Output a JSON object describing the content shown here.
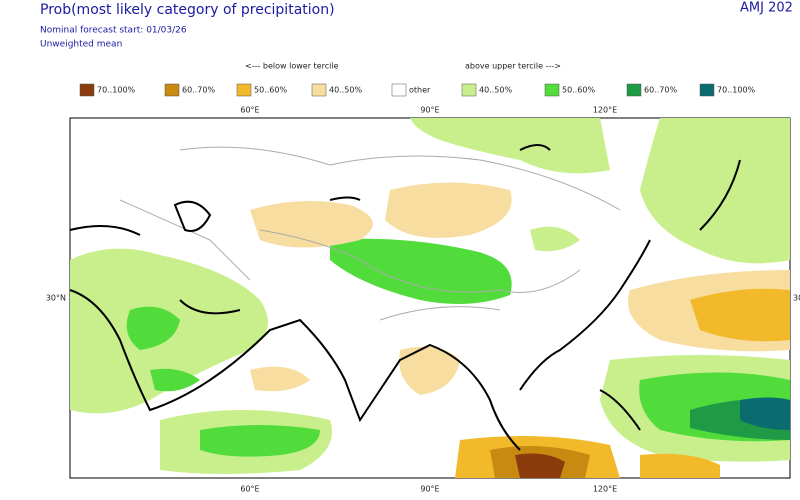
{
  "header": {
    "title": "Prob(most likely category of precipitation)",
    "subtitle": "Nominal forecast start: 01/03/26",
    "note": "Unweighted mean",
    "period": "AMJ 202"
  },
  "legend": {
    "below_label": "<--- below lower tercile",
    "above_label": "above upper tercile --->",
    "items": [
      {
        "label": "70..100%",
        "color": "#8c3b0c"
      },
      {
        "label": "60..70%",
        "color": "#c98a12"
      },
      {
        "label": "50..60%",
        "color": "#f2b92a"
      },
      {
        "label": "40..50%",
        "color": "#f7dea0"
      },
      {
        "label": "other",
        "color": "#ffffff"
      },
      {
        "label": "40..50%",
        "color": "#c8ef8c"
      },
      {
        "label": "50..60%",
        "color": "#52dc3c"
      },
      {
        "label": "60..70%",
        "color": "#1f9a45"
      },
      {
        "label": "70..100%",
        "color": "#0c6b6e"
      }
    ]
  },
  "map": {
    "top_labels": [
      "60°E",
      "90°E",
      "120°E"
    ],
    "bottom_labels": [
      "60°E",
      "90°E",
      "120°E"
    ],
    "left_labels": [
      "30°N"
    ],
    "right_labels": [
      "30"
    ]
  }
}
